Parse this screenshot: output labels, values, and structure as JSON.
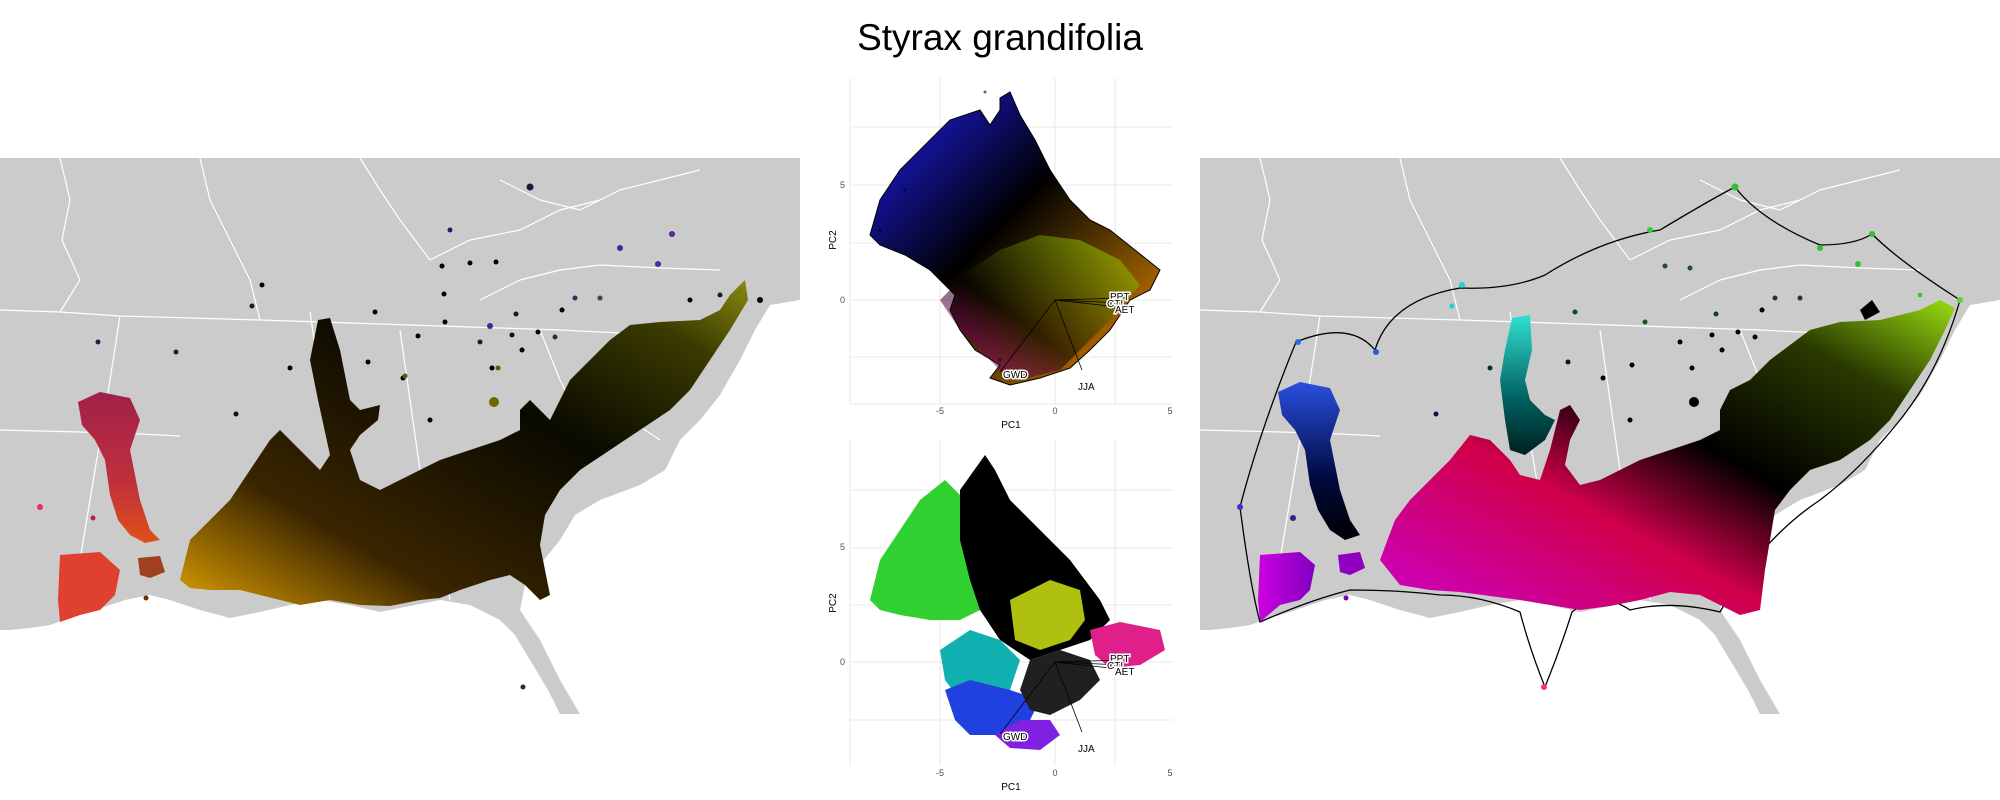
{
  "figure_title": "Styrax grandifolia",
  "colors": {
    "land": "#cbcbcb",
    "border": "#ffffff",
    "grid": "#e9e9e9",
    "hull": "#000000"
  },
  "chart_data": [
    {
      "type": "scatter",
      "panel": "pca-top",
      "title": "",
      "xlabel": "PC1",
      "ylabel": "PC2",
      "xticks": [
        -5,
        0,
        5
      ],
      "yticks": [
        5,
        0
      ],
      "xlim": [
        -9,
        5.5
      ],
      "ylim": [
        -7.2,
        9
      ],
      "grid": true,
      "coloring": "2D rainbow gradient by PC position (black center)",
      "vectors": [
        {
          "label": "GWD",
          "x": -2.3,
          "y": -6.0
        },
        {
          "label": "JJA",
          "x": 1.0,
          "y": -5.5
        },
        {
          "label": "PPT",
          "x": 3.0,
          "y": 0.1
        },
        {
          "label": "CTI",
          "x": 2.8,
          "y": -0.1
        },
        {
          "label": "AET",
          "x": 3.2,
          "y": -0.4
        }
      ]
    },
    {
      "type": "scatter",
      "panel": "pca-bottom",
      "title": "",
      "xlabel": "PC1",
      "ylabel": "PC2",
      "xticks": [
        -5,
        0,
        5
      ],
      "yticks": [
        5,
        0
      ],
      "xlim": [
        -9,
        5.5
      ],
      "ylim": [
        -7.2,
        9
      ],
      "grid": true,
      "coloring": "recolored to match right map",
      "vectors": [
        {
          "label": "GWD",
          "x": -2.3,
          "y": -6.0
        },
        {
          "label": "JJA",
          "x": 1.0,
          "y": -5.5
        },
        {
          "label": "PPT",
          "x": 3.0,
          "y": 0.1
        },
        {
          "label": "CTI",
          "x": 2.8,
          "y": -0.1
        },
        {
          "label": "AET",
          "x": 3.2,
          "y": -0.4
        }
      ]
    }
  ],
  "maps": [
    {
      "name": "left-map",
      "region": "Southeastern United States",
      "style": "range colored by PCA gradient"
    },
    {
      "name": "right-map",
      "region": "Southeastern United States",
      "style": "range colored with hull outline"
    }
  ]
}
